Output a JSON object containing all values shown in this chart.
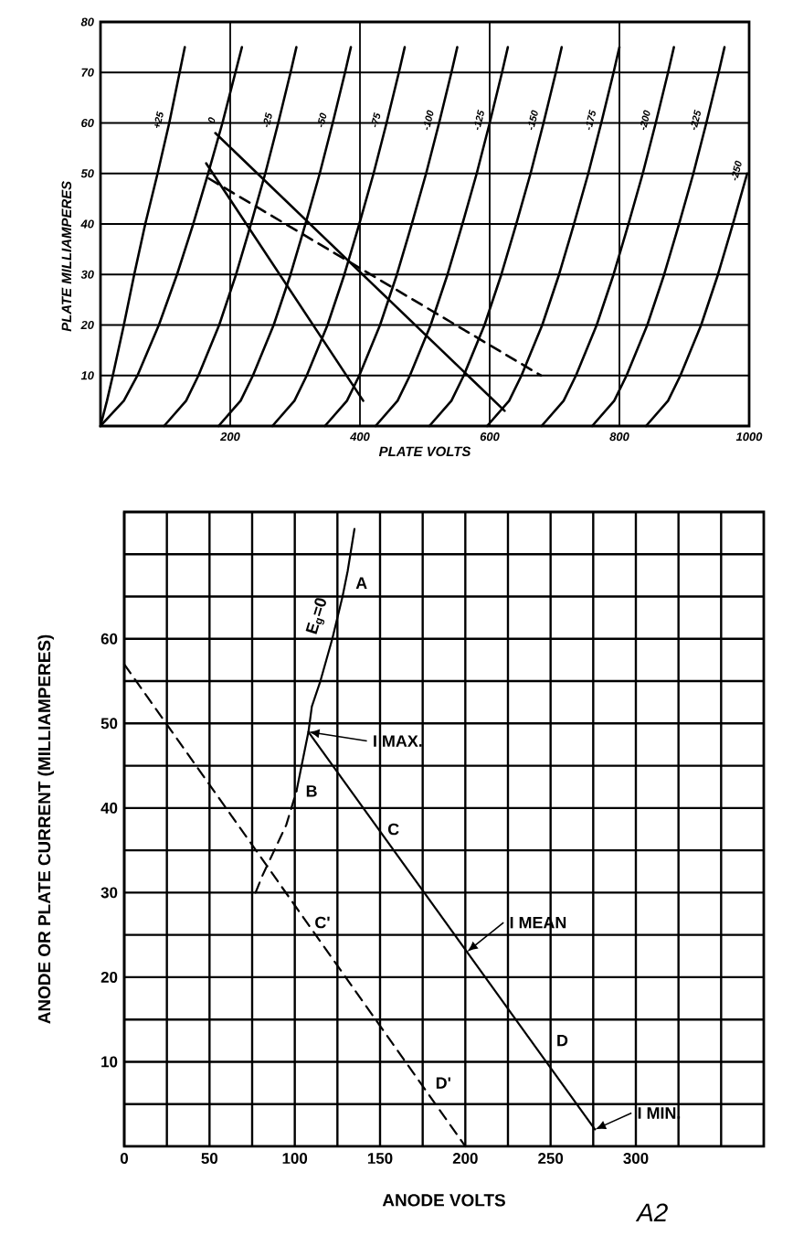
{
  "chart_data": [
    {
      "type": "line",
      "xlabel": "PLATE VOLTS",
      "ylabel": "PLATE MILLIAMPERES",
      "xlim": [
        0,
        1000
      ],
      "ylim": [
        0,
        80
      ],
      "xticks": [
        200,
        400,
        600,
        800,
        1000
      ],
      "yticks": [
        10,
        20,
        30,
        40,
        50,
        60,
        70,
        80
      ],
      "grid": true,
      "series": [
        {
          "name": "+25",
          "color": "#000000",
          "x": [
            0,
            10,
            19,
            36,
            52,
            69,
            88,
            106,
            122,
            130
          ],
          "values": [
            0,
            5,
            10,
            20,
            30,
            40,
            50,
            60,
            70,
            75
          ]
        },
        {
          "name": "0",
          "color": "#000000",
          "x": [
            0,
            36,
            57,
            90,
            118,
            143,
            166,
            188,
            208,
            218
          ],
          "values": [
            0,
            5,
            10,
            20,
            30,
            40,
            50,
            60,
            70,
            75
          ]
        },
        {
          "name": "-25",
          "color": "#000000",
          "x": [
            98,
            132,
            151,
            183,
            209,
            232,
            254,
            274,
            293,
            302
          ],
          "values": [
            0,
            5,
            10,
            20,
            30,
            40,
            50,
            60,
            70,
            75
          ]
        },
        {
          "name": "-50",
          "color": "#000000",
          "x": [
            182,
            216,
            235,
            267,
            293,
            316,
            338,
            358,
            377,
            386
          ],
          "values": [
            0,
            5,
            10,
            20,
            30,
            40,
            50,
            60,
            70,
            75
          ]
        },
        {
          "name": "-75",
          "color": "#000000",
          "x": [
            265,
            299,
            318,
            350,
            376,
            399,
            421,
            441,
            460,
            469
          ],
          "values": [
            0,
            5,
            10,
            20,
            30,
            40,
            50,
            60,
            70,
            75
          ]
        },
        {
          "name": "-100",
          "color": "#000000",
          "x": [
            346,
            380,
            399,
            431,
            457,
            480,
            502,
            522,
            541,
            550
          ],
          "values": [
            0,
            5,
            10,
            20,
            30,
            40,
            50,
            60,
            70,
            75
          ]
        },
        {
          "name": "-125",
          "color": "#000000",
          "x": [
            424,
            458,
            477,
            509,
            535,
            558,
            580,
            600,
            619,
            628
          ],
          "values": [
            0,
            5,
            10,
            20,
            30,
            40,
            50,
            60,
            70,
            75
          ]
        },
        {
          "name": "-150",
          "color": "#000000",
          "x": [
            507,
            541,
            560,
            592,
            618,
            641,
            663,
            683,
            702,
            711
          ],
          "values": [
            0,
            5,
            10,
            20,
            30,
            40,
            50,
            60,
            70,
            75
          ]
        },
        {
          "name": "-175",
          "color": "#000000",
          "x": [
            596,
            630,
            649,
            681,
            707,
            730,
            752,
            772,
            791,
            800
          ],
          "values": [
            0,
            5,
            10,
            20,
            30,
            40,
            50,
            60,
            70,
            75
          ]
        },
        {
          "name": "-200",
          "color": "#000000",
          "x": [
            680,
            714,
            733,
            765,
            791,
            814,
            836,
            856,
            875,
            884
          ],
          "values": [
            0,
            5,
            10,
            20,
            30,
            40,
            50,
            60,
            70,
            75
          ]
        },
        {
          "name": "-225",
          "color": "#000000",
          "x": [
            758,
            792,
            811,
            843,
            869,
            892,
            914,
            934,
            953,
            962
          ],
          "values": [
            0,
            5,
            10,
            20,
            30,
            40,
            50,
            60,
            70,
            75
          ]
        },
        {
          "name": "-250",
          "color": "#000000",
          "x": [
            841,
            875,
            894,
            926,
            952,
            975,
            997
          ],
          "values": [
            0,
            5,
            10,
            20,
            30,
            40,
            50
          ]
        },
        {
          "color": "#000000",
          "x": [
            177,
            623
          ],
          "values": [
            58,
            3
          ]
        },
        {
          "color": "#000000",
          "x": [
            163,
            405
          ],
          "values": [
            52,
            5
          ]
        },
        {
          "color": "#000000",
          "x": [
            167,
            679
          ],
          "values": [
            49,
            10
          ],
          "line_style": "dashed"
        }
      ]
    },
    {
      "type": "line",
      "xlabel": "ANODE VOLTS",
      "ylabel": "ANODE OR PLATE CURRENT (MILLIAMPERES)",
      "xlim": [
        0,
        375
      ],
      "ylim": [
        0,
        75
      ],
      "xticks": [
        0,
        {
          "value": 25,
          "label": null
        },
        50,
        {
          "value": 75,
          "label": null
        },
        100,
        {
          "value": 125,
          "label": null
        },
        150,
        {
          "value": 175,
          "label": null
        },
        200,
        {
          "value": 225,
          "label": null
        },
        250,
        {
          "value": 275,
          "label": null
        },
        300,
        {
          "value": 325,
          "label": null
        },
        {
          "value": 350,
          "label": null
        }
      ],
      "yticks": [
        {
          "value": 5,
          "label": null
        },
        10,
        {
          "value": 15,
          "label": null
        },
        20,
        {
          "value": 25,
          "label": null
        },
        30,
        {
          "value": 35,
          "label": null
        },
        40,
        {
          "value": 45,
          "label": null
        },
        50,
        {
          "value": 55,
          "label": null
        },
        60,
        {
          "value": 65,
          "label": null
        },
        {
          "value": 70,
          "label": null
        }
      ],
      "grid": true,
      "series": [
        {
          "name": "E$_{g}$=0",
          "color": "#000000",
          "x": [
            101,
            104,
            108,
            110,
            115,
            122,
            128,
            131,
            135
          ],
          "values": [
            42,
            45,
            49,
            52,
            55,
            60,
            65,
            68,
            73
          ]
        },
        {
          "color": "#000000",
          "x": [
            77,
            81,
            88,
            95,
            101
          ],
          "values": [
            30,
            32,
            35,
            38,
            42
          ],
          "line_style": "dashed"
        },
        {
          "color": "#000000",
          "x": [
            108,
            276
          ],
          "values": [
            49,
            2
          ]
        },
        {
          "color": "#000000",
          "x": [
            0,
            200
          ],
          "values": [
            57,
            0
          ],
          "line_style": "dashed"
        }
      ],
      "annotations": [
        "A",
        "B",
        {
          "text": "I MAX.",
          "x": 108,
          "y": 49
        },
        "C",
        "C'",
        {
          "text": "I MEAN",
          "x": 201,
          "y": 23
        },
        "D",
        "D'",
        {
          "text": "I MIN.",
          "x": 276,
          "y": 2
        },
        "A2"
      ]
    }
  ]
}
